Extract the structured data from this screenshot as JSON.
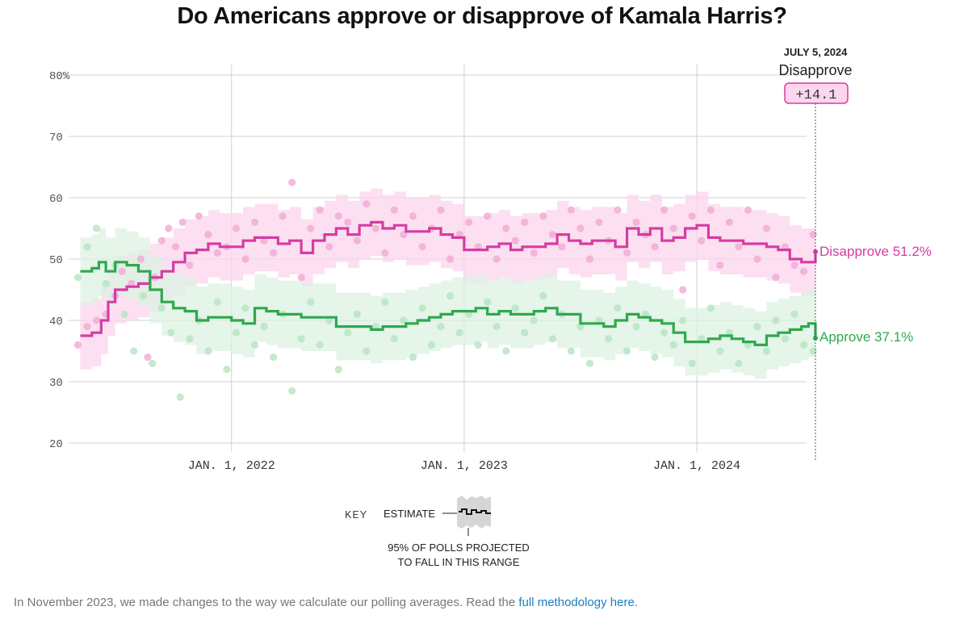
{
  "title": "Do Americans approve or disapprove of Kamala Harris?",
  "chart_data": {
    "type": "line",
    "title": "Do Americans approve or disapprove of Kamala Harris?",
    "y_ticks": [
      "80%",
      "70",
      "60",
      "50",
      "40",
      "30",
      "20"
    ],
    "y_tick_values": [
      80,
      70,
      60,
      50,
      40,
      30,
      20
    ],
    "ylim": [
      20,
      80
    ],
    "x_ticks": [
      "JAN. 1, 2022",
      "JAN. 1, 2023",
      "JAN. 1, 2024"
    ],
    "x_tick_values": [
      2022.0,
      2023.0,
      2024.0
    ],
    "xlim": [
      2021.3,
      2024.51
    ],
    "series": [
      {
        "name": "Disapprove",
        "color": "#d63ca3",
        "band_color": "#fbd6ec",
        "dot_color": "#f0a9d4",
        "end_label": "Disapprove 51.2%",
        "band_halfwidth": 5.5,
        "points": [
          [
            2021.35,
            37.5
          ],
          [
            2021.4,
            38
          ],
          [
            2021.44,
            40
          ],
          [
            2021.47,
            43
          ],
          [
            2021.5,
            45
          ],
          [
            2021.55,
            45.5
          ],
          [
            2021.6,
            46
          ],
          [
            2021.65,
            47
          ],
          [
            2021.7,
            48
          ],
          [
            2021.75,
            49.5
          ],
          [
            2021.8,
            51
          ],
          [
            2021.85,
            51.5
          ],
          [
            2021.9,
            52.5
          ],
          [
            2021.95,
            52
          ],
          [
            2022.0,
            52
          ],
          [
            2022.05,
            53
          ],
          [
            2022.1,
            53.5
          ],
          [
            2022.15,
            53.5
          ],
          [
            2022.2,
            52.5
          ],
          [
            2022.25,
            53
          ],
          [
            2022.3,
            51
          ],
          [
            2022.35,
            53
          ],
          [
            2022.4,
            54
          ],
          [
            2022.45,
            55
          ],
          [
            2022.5,
            54
          ],
          [
            2022.55,
            55.5
          ],
          [
            2022.6,
            56
          ],
          [
            2022.65,
            55
          ],
          [
            2022.7,
            55.5
          ],
          [
            2022.75,
            54.5
          ],
          [
            2022.8,
            54.5
          ],
          [
            2022.85,
            55
          ],
          [
            2022.9,
            54
          ],
          [
            2022.95,
            53.5
          ],
          [
            2023.0,
            51.5
          ],
          [
            2023.05,
            51.5
          ],
          [
            2023.1,
            52
          ],
          [
            2023.15,
            52.5
          ],
          [
            2023.2,
            51.5
          ],
          [
            2023.25,
            52
          ],
          [
            2023.3,
            52
          ],
          [
            2023.35,
            52.5
          ],
          [
            2023.4,
            54
          ],
          [
            2023.45,
            53
          ],
          [
            2023.5,
            52.5
          ],
          [
            2023.55,
            53
          ],
          [
            2023.6,
            53
          ],
          [
            2023.65,
            52
          ],
          [
            2023.7,
            55
          ],
          [
            2023.75,
            54
          ],
          [
            2023.8,
            55
          ],
          [
            2023.85,
            53
          ],
          [
            2023.9,
            53.5
          ],
          [
            2023.95,
            55
          ],
          [
            2024.0,
            55.5
          ],
          [
            2024.05,
            53.5
          ],
          [
            2024.1,
            53
          ],
          [
            2024.15,
            53
          ],
          [
            2024.2,
            52.5
          ],
          [
            2024.25,
            52.5
          ],
          [
            2024.3,
            52
          ],
          [
            2024.35,
            51.5
          ],
          [
            2024.4,
            50
          ],
          [
            2024.45,
            49.5
          ],
          [
            2024.48,
            49.5
          ],
          [
            2024.51,
            51.2
          ]
        ],
        "dots": [
          [
            2021.34,
            36
          ],
          [
            2021.38,
            39
          ],
          [
            2021.42,
            40
          ],
          [
            2021.46,
            41
          ],
          [
            2021.5,
            44
          ],
          [
            2021.53,
            48
          ],
          [
            2021.57,
            46
          ],
          [
            2021.61,
            50
          ],
          [
            2021.64,
            34
          ],
          [
            2021.67,
            47
          ],
          [
            2021.7,
            53
          ],
          [
            2021.73,
            55
          ],
          [
            2021.76,
            52
          ],
          [
            2021.79,
            56
          ],
          [
            2021.82,
            49
          ],
          [
            2021.86,
            57
          ],
          [
            2021.9,
            54
          ],
          [
            2021.94,
            51
          ],
          [
            2021.98,
            52
          ],
          [
            2022.02,
            55
          ],
          [
            2022.06,
            50
          ],
          [
            2022.1,
            56
          ],
          [
            2022.14,
            53
          ],
          [
            2022.18,
            51
          ],
          [
            2022.22,
            57
          ],
          [
            2022.26,
            62.5
          ],
          [
            2022.3,
            47
          ],
          [
            2022.34,
            55
          ],
          [
            2022.38,
            58
          ],
          [
            2022.42,
            52
          ],
          [
            2022.46,
            57
          ],
          [
            2022.5,
            56
          ],
          [
            2022.54,
            53
          ],
          [
            2022.58,
            59
          ],
          [
            2022.62,
            55
          ],
          [
            2022.66,
            51
          ],
          [
            2022.7,
            58
          ],
          [
            2022.74,
            54
          ],
          [
            2022.78,
            57
          ],
          [
            2022.82,
            52
          ],
          [
            2022.86,
            55
          ],
          [
            2022.9,
            58
          ],
          [
            2022.94,
            50
          ],
          [
            2022.98,
            54
          ],
          [
            2023.02,
            56
          ],
          [
            2023.06,
            52
          ],
          [
            2023.1,
            57
          ],
          [
            2023.14,
            50
          ],
          [
            2023.18,
            55
          ],
          [
            2023.22,
            53
          ],
          [
            2023.26,
            56
          ],
          [
            2023.3,
            51
          ],
          [
            2023.34,
            57
          ],
          [
            2023.38,
            54
          ],
          [
            2023.42,
            52
          ],
          [
            2023.46,
            58
          ],
          [
            2023.5,
            55
          ],
          [
            2023.54,
            50
          ],
          [
            2023.58,
            56
          ],
          [
            2023.62,
            53
          ],
          [
            2023.66,
            58
          ],
          [
            2023.7,
            51
          ],
          [
            2023.74,
            56
          ],
          [
            2023.78,
            54
          ],
          [
            2023.82,
            52
          ],
          [
            2023.86,
            58
          ],
          [
            2023.9,
            55
          ],
          [
            2023.94,
            45
          ],
          [
            2023.98,
            57
          ],
          [
            2024.02,
            53
          ],
          [
            2024.06,
            58
          ],
          [
            2024.1,
            49
          ],
          [
            2024.14,
            56
          ],
          [
            2024.18,
            52
          ],
          [
            2024.22,
            58
          ],
          [
            2024.26,
            50
          ],
          [
            2024.3,
            55
          ],
          [
            2024.34,
            47
          ],
          [
            2024.38,
            52
          ],
          [
            2024.42,
            49
          ],
          [
            2024.46,
            48
          ],
          [
            2024.5,
            54
          ]
        ]
      },
      {
        "name": "Approve",
        "color": "#2fa84f",
        "band_color": "#dcf2e1",
        "dot_color": "#b5e3c1",
        "end_label": "Approve 37.1%",
        "band_halfwidth": 5.5,
        "points": [
          [
            2021.35,
            48
          ],
          [
            2021.4,
            48.5
          ],
          [
            2021.43,
            49.5
          ],
          [
            2021.46,
            48
          ],
          [
            2021.5,
            49.5
          ],
          [
            2021.55,
            49
          ],
          [
            2021.6,
            48
          ],
          [
            2021.65,
            45
          ],
          [
            2021.7,
            43
          ],
          [
            2021.75,
            42
          ],
          [
            2021.8,
            41.5
          ],
          [
            2021.85,
            40
          ],
          [
            2021.9,
            40.5
          ],
          [
            2021.95,
            40.5
          ],
          [
            2022.0,
            40
          ],
          [
            2022.05,
            39.5
          ],
          [
            2022.1,
            42
          ],
          [
            2022.15,
            41.5
          ],
          [
            2022.2,
            41
          ],
          [
            2022.25,
            41
          ],
          [
            2022.3,
            40.5
          ],
          [
            2022.35,
            40.5
          ],
          [
            2022.4,
            40.5
          ],
          [
            2022.45,
            39
          ],
          [
            2022.5,
            39
          ],
          [
            2022.55,
            39
          ],
          [
            2022.6,
            38.5
          ],
          [
            2022.65,
            39
          ],
          [
            2022.7,
            39
          ],
          [
            2022.75,
            39.5
          ],
          [
            2022.8,
            40
          ],
          [
            2022.85,
            40.5
          ],
          [
            2022.9,
            41
          ],
          [
            2022.95,
            41.5
          ],
          [
            2023.0,
            41.5
          ],
          [
            2023.05,
            42
          ],
          [
            2023.1,
            41
          ],
          [
            2023.15,
            41.5
          ],
          [
            2023.2,
            41
          ],
          [
            2023.25,
            41
          ],
          [
            2023.3,
            41.5
          ],
          [
            2023.35,
            42
          ],
          [
            2023.4,
            41
          ],
          [
            2023.45,
            41
          ],
          [
            2023.5,
            39.5
          ],
          [
            2023.55,
            39.5
          ],
          [
            2023.6,
            39
          ],
          [
            2023.65,
            40
          ],
          [
            2023.7,
            41
          ],
          [
            2023.75,
            40.5
          ],
          [
            2023.8,
            40
          ],
          [
            2023.85,
            39.5
          ],
          [
            2023.9,
            38
          ],
          [
            2023.95,
            36.5
          ],
          [
            2024.0,
            36.5
          ],
          [
            2024.05,
            37
          ],
          [
            2024.1,
            37.5
          ],
          [
            2024.15,
            37
          ],
          [
            2024.2,
            36.5
          ],
          [
            2024.25,
            36
          ],
          [
            2024.3,
            37.5
          ],
          [
            2024.35,
            38
          ],
          [
            2024.4,
            38.5
          ],
          [
            2024.45,
            39
          ],
          [
            2024.48,
            39.5
          ],
          [
            2024.51,
            37.1
          ]
        ],
        "dots": [
          [
            2021.34,
            47
          ],
          [
            2021.38,
            52
          ],
          [
            2021.42,
            55
          ],
          [
            2021.46,
            46
          ],
          [
            2021.5,
            49
          ],
          [
            2021.54,
            41
          ],
          [
            2021.58,
            35
          ],
          [
            2021.62,
            44
          ],
          [
            2021.66,
            33
          ],
          [
            2021.7,
            42
          ],
          [
            2021.74,
            38
          ],
          [
            2021.78,
            27.5
          ],
          [
            2021.82,
            37
          ],
          [
            2021.86,
            40
          ],
          [
            2021.9,
            35
          ],
          [
            2021.94,
            43
          ],
          [
            2021.98,
            32
          ],
          [
            2022.02,
            38
          ],
          [
            2022.06,
            42
          ],
          [
            2022.1,
            36
          ],
          [
            2022.14,
            39
          ],
          [
            2022.18,
            34
          ],
          [
            2022.22,
            41
          ],
          [
            2022.26,
            28.5
          ],
          [
            2022.3,
            37
          ],
          [
            2022.34,
            43
          ],
          [
            2022.38,
            36
          ],
          [
            2022.42,
            40
          ],
          [
            2022.46,
            32
          ],
          [
            2022.5,
            38
          ],
          [
            2022.54,
            41
          ],
          [
            2022.58,
            35
          ],
          [
            2022.62,
            39
          ],
          [
            2022.66,
            43
          ],
          [
            2022.7,
            37
          ],
          [
            2022.74,
            40
          ],
          [
            2022.78,
            34
          ],
          [
            2022.82,
            42
          ],
          [
            2022.86,
            36
          ],
          [
            2022.9,
            39
          ],
          [
            2022.94,
            44
          ],
          [
            2022.98,
            38
          ],
          [
            2023.02,
            41
          ],
          [
            2023.06,
            36
          ],
          [
            2023.1,
            43
          ],
          [
            2023.14,
            39
          ],
          [
            2023.18,
            35
          ],
          [
            2023.22,
            42
          ],
          [
            2023.26,
            38
          ],
          [
            2023.3,
            40
          ],
          [
            2023.34,
            44
          ],
          [
            2023.38,
            37
          ],
          [
            2023.42,
            41
          ],
          [
            2023.46,
            35
          ],
          [
            2023.5,
            39
          ],
          [
            2023.54,
            33
          ],
          [
            2023.58,
            40
          ],
          [
            2023.62,
            37
          ],
          [
            2023.66,
            42
          ],
          [
            2023.7,
            35
          ],
          [
            2023.74,
            39
          ],
          [
            2023.78,
            41
          ],
          [
            2023.82,
            34
          ],
          [
            2023.86,
            38
          ],
          [
            2023.9,
            36
          ],
          [
            2023.94,
            40
          ],
          [
            2023.98,
            33
          ],
          [
            2024.02,
            37
          ],
          [
            2024.06,
            42
          ],
          [
            2024.1,
            35
          ],
          [
            2024.14,
            38
          ],
          [
            2024.18,
            33
          ],
          [
            2024.22,
            36
          ],
          [
            2024.26,
            39
          ],
          [
            2024.3,
            35
          ],
          [
            2024.34,
            40
          ],
          [
            2024.38,
            37
          ],
          [
            2024.42,
            41
          ],
          [
            2024.46,
            36
          ],
          [
            2024.5,
            35
          ]
        ]
      }
    ],
    "annotation": {
      "date": "JULY 5, 2024",
      "label": "Disapprove",
      "margin": "+14.1"
    }
  },
  "key": {
    "label": "KEY",
    "estimate": "ESTIMATE",
    "range_line1": "95% OF POLLS PROJECTED",
    "range_line2": "TO FALL IN THIS RANGE"
  },
  "footnote": {
    "text": "In November 2023, we made changes to the way we calculate our polling averages. Read the ",
    "link": "full methodology here",
    "end": "."
  }
}
